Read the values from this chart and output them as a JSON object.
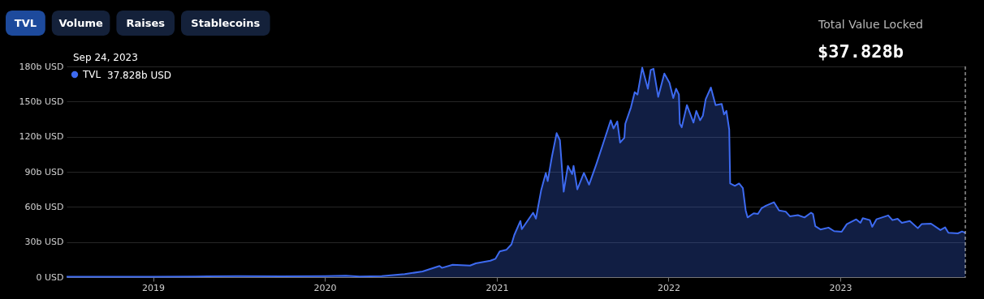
{
  "chart_data": {
    "type": "area",
    "title": "Total Value Locked",
    "subtitle": "$37.828b",
    "annotations": [
      "TVL",
      "Volume",
      "Raises",
      "Stablecoins",
      "Sep 24, 2023",
      "37.828b USD"
    ],
    "x": [
      "2018-07-01",
      "2018-10-01",
      "2019-01-01",
      "2019-04-01",
      "2019-07-01",
      "2019-10-01",
      "2020-01-01",
      "2020-02-15",
      "2020-03-15",
      "2020-05-01",
      "2020-06-19",
      "2020-07-27",
      "2020-09-01",
      "2020-09-06",
      "2020-09-29",
      "2020-11-05",
      "2020-11-17",
      "2020-12-18",
      "2020-12-29",
      "2021-01-07",
      "2021-01-21",
      "2021-02-01",
      "2021-02-07",
      "2021-02-20",
      "2021-02-23",
      "2021-03-19",
      "2021-03-25",
      "2021-04-05",
      "2021-04-15",
      "2021-04-19",
      "2021-04-28",
      "2021-05-08",
      "2021-05-15",
      "2021-05-23",
      "2021-06-01",
      "2021-06-10",
      "2021-06-13",
      "2021-06-21",
      "2021-07-05",
      "2021-07-16",
      "2021-07-31",
      "2021-08-14",
      "2021-08-31",
      "2021-09-06",
      "2021-09-14",
      "2021-09-20",
      "2021-09-29",
      "2021-10-01",
      "2021-10-13",
      "2021-10-21",
      "2021-10-27",
      "2021-11-06",
      "2021-11-18",
      "2021-11-24",
      "2021-11-30",
      "2021-12-10",
      "2021-12-23",
      "2022-01-03",
      "2022-01-11",
      "2022-01-17",
      "2022-01-23",
      "2022-01-25",
      "2022-01-29",
      "2022-02-09",
      "2022-02-23",
      "2022-03-01",
      "2022-03-09",
      "2022-03-15",
      "2022-03-21",
      "2022-04-01",
      "2022-04-11",
      "2022-04-24",
      "2022-04-29",
      "2022-05-04",
      "2022-05-10",
      "2022-05-12",
      "2022-05-22",
      "2022-05-31",
      "2022-06-08",
      "2022-06-14",
      "2022-06-18",
      "2022-07-01",
      "2022-07-10",
      "2022-07-18",
      "2022-07-27",
      "2022-08-13",
      "2022-08-24",
      "2022-09-07",
      "2022-09-16",
      "2022-10-03",
      "2022-10-17",
      "2022-10-31",
      "2022-11-04",
      "2022-11-09",
      "2022-11-20",
      "2022-12-07",
      "2022-12-19",
      "2023-01-04",
      "2023-01-15",
      "2023-02-04",
      "2023-02-13",
      "2023-02-18",
      "2023-03-05",
      "2023-03-10",
      "2023-03-19",
      "2023-04-13",
      "2023-04-22",
      "2023-05-03",
      "2023-05-12",
      "2023-05-29",
      "2023-06-15",
      "2023-06-23",
      "2023-07-13",
      "2023-08-02",
      "2023-08-12",
      "2023-08-19",
      "2023-09-08",
      "2023-09-17",
      "2023-09-24"
    ],
    "legend": "top left",
    "series": [
      {
        "name": "TVL",
        "color": "#3d6af0",
        "values": [
          0.3,
          0.4,
          0.4,
          0.6,
          0.8,
          0.7,
          0.9,
          1.2,
          0.5,
          0.9,
          2.6,
          4.8,
          9.5,
          7.9,
          10.6,
          9.9,
          11.8,
          14,
          15.7,
          22,
          23.3,
          28,
          36,
          48,
          41,
          55,
          50,
          74,
          89,
          82,
          103,
          123,
          117,
          73,
          95,
          88,
          95,
          75,
          89,
          79,
          96,
          113,
          134,
          127,
          133,
          115,
          119,
          131,
          145,
          158,
          156,
          179,
          161,
          177,
          178,
          154,
          174,
          166,
          153,
          161,
          156,
          131,
          128,
          147,
          132,
          142,
          134,
          138,
          152,
          162,
          147,
          148,
          139,
          142,
          126,
          80,
          78,
          80,
          76,
          57,
          51,
          54.5,
          54,
          59,
          61,
          64,
          57,
          56,
          52,
          53,
          51,
          55,
          54,
          43.5,
          40.7,
          42.3,
          39.3,
          38.8,
          45.3,
          49.4,
          46.4,
          50.4,
          48.7,
          43,
          49.4,
          52.7,
          48.7,
          49.9,
          46.4,
          48,
          41.8,
          45.3,
          45.7,
          40.2,
          42.5,
          37.9,
          37.4,
          39,
          37.8
        ]
      }
    ],
    "xlim": [
      "2018-07-01",
      "2023-09-24"
    ],
    "xticks": [
      "2019",
      "2020",
      "2021",
      "2022",
      "2023"
    ],
    "ylim": [
      0,
      180
    ],
    "yticks": [
      {
        "value": 0,
        "label": "0 USD"
      },
      {
        "value": 30,
        "label": "30b USD"
      },
      {
        "value": 60,
        "label": "60b USD"
      },
      {
        "value": 90,
        "label": "90b USD"
      },
      {
        "value": 120,
        "label": "120b USD"
      },
      {
        "value": 150,
        "label": "150b USD"
      },
      {
        "value": 180,
        "label": "180b USD"
      }
    ],
    "ref_lines": [
      {
        "axis": "x",
        "value": "2023-09-24",
        "color": "#dddddd",
        "line_style": "dashed"
      }
    ],
    "grid": "y"
  }
}
